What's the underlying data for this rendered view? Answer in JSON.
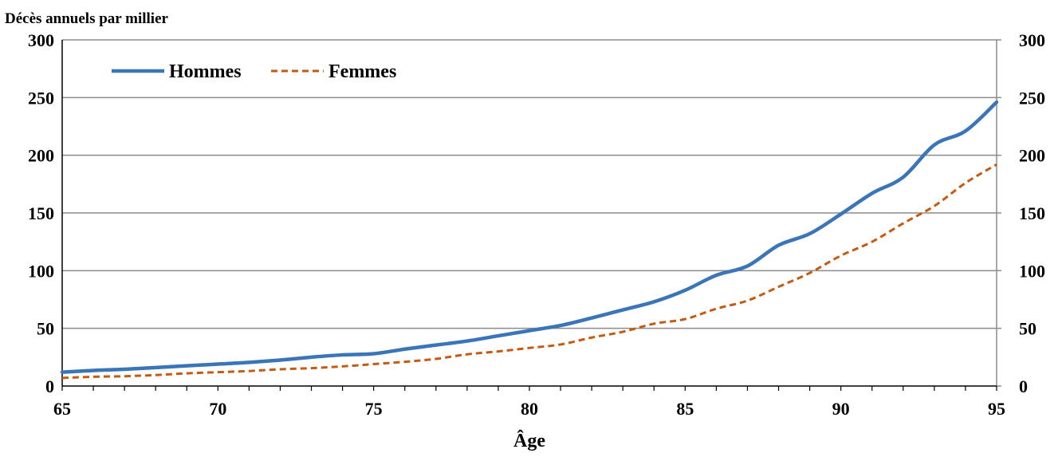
{
  "chart_data": {
    "type": "line",
    "title": "",
    "ylabel": "Décès annuels par millier",
    "xlabel": "Âge",
    "x": [
      65,
      66,
      67,
      68,
      69,
      70,
      71,
      72,
      73,
      74,
      75,
      76,
      77,
      78,
      79,
      80,
      81,
      82,
      83,
      84,
      85,
      86,
      87,
      88,
      89,
      90,
      91,
      92,
      93,
      94,
      95
    ],
    "series": [
      {
        "name": "Hommes",
        "color": "#3a75b8",
        "style": "solid",
        "values": [
          12,
          13.5,
          14.5,
          16,
          17.5,
          19,
          20.5,
          22.5,
          25,
          27,
          28,
          32,
          35.5,
          39,
          43.5,
          48,
          52.5,
          59,
          66,
          73,
          83,
          96,
          104,
          122,
          132,
          149,
          167,
          181,
          209,
          221,
          246
        ]
      },
      {
        "name": "Femmes",
        "color": "#c55a11",
        "style": "dashed",
        "values": [
          7,
          8,
          8.5,
          9.5,
          11,
          12,
          13,
          14.5,
          15.5,
          17,
          19,
          21,
          23.5,
          27.5,
          30,
          33,
          36,
          42,
          47,
          54,
          58,
          67,
          74,
          86,
          98,
          113,
          125,
          141,
          156,
          176,
          192
        ]
      }
    ],
    "xlim": [
      65,
      95
    ],
    "ylim": [
      0,
      300
    ],
    "x_ticks": [
      "65",
      "70",
      "75",
      "80",
      "85",
      "90",
      "95"
    ],
    "y_ticks": [
      "0",
      "50",
      "100",
      "150",
      "200",
      "250",
      "300"
    ],
    "y_ticks_right": [
      "0",
      "50",
      "100",
      "150",
      "200",
      "250",
      "300"
    ],
    "grid": "horizontal",
    "legend_position": "top-left"
  }
}
